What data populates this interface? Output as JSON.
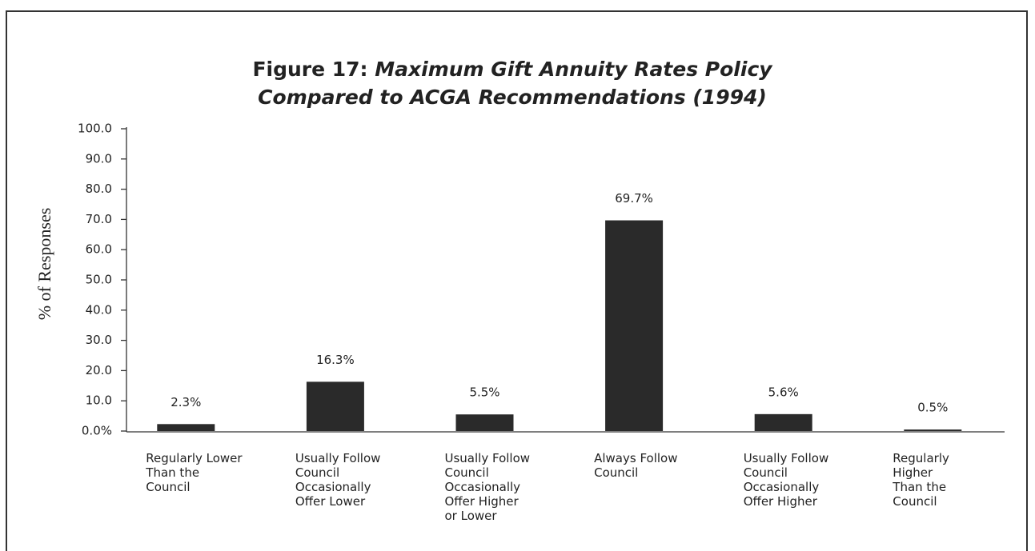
{
  "chart_data": {
    "type": "bar",
    "title": [
      "Figure 17: Maximum Gift Annuity Rates Policy",
      "Compared to ACGA Recommendations  (1994)"
    ],
    "ylabel": "% of Responses",
    "categories": [
      "Regularly Lower\nThan the\nCouncil",
      "Usually Follow\nCouncil\nOccasionally\nOffer Lower",
      "Usually Follow\nCouncil\nOccasionally\nOffer Higher\nor Lower",
      "Always Follow\nCouncil",
      "Usually Follow\nCouncil\nOccasionally\nOffer Higher",
      "Regularly\nHigher\nThan the\nCouncil"
    ],
    "values": [
      2.3,
      16.3,
      5.5,
      69.7,
      5.6,
      0.5
    ],
    "value_labels": [
      "2.3%",
      "16.3%",
      "5.5%",
      "69.7%",
      "5.6%",
      "0.5%"
    ],
    "color": "#2a2a2a",
    "ylim": [
      0,
      100
    ],
    "yticks": [
      {
        "value": 0,
        "label": "0.0%"
      },
      {
        "value": 10,
        "label": "10.0"
      },
      {
        "value": 20,
        "label": "20.0"
      },
      {
        "value": 30,
        "label": "30.0"
      },
      {
        "value": 40,
        "label": "40.0"
      },
      {
        "value": 50,
        "label": "50.0"
      },
      {
        "value": 60,
        "label": "60.0"
      },
      {
        "value": 70,
        "label": "70.0"
      },
      {
        "value": 80,
        "label": "80.0"
      },
      {
        "value": 90,
        "label": "90.0"
      },
      {
        "value": 100,
        "label": "100.0"
      }
    ],
    "grid": false
  }
}
